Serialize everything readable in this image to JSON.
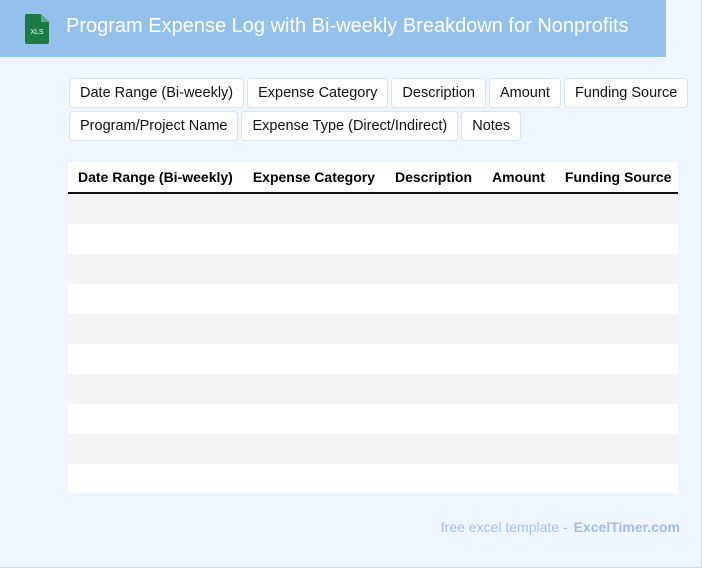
{
  "header": {
    "title": "Program Expense Log with Bi-weekly Breakdown for Nonprofits",
    "icon": "xls-file-icon",
    "icon_label": "XLS",
    "background": "#94c1eb"
  },
  "tags": [
    {
      "label": "Date Range (Bi-weekly)"
    },
    {
      "label": "Expense Category"
    },
    {
      "label": "Description"
    },
    {
      "label": "Amount"
    },
    {
      "label": "Funding Source"
    },
    {
      "label": "Program/Project Name"
    },
    {
      "label": "Expense Type (Direct/Indirect)"
    },
    {
      "label": "Notes"
    }
  ],
  "table": {
    "columns": [
      "Date Range (Bi-weekly)",
      "Expense Category",
      "Description",
      "Amount",
      "Funding Source",
      "Program/Project Name",
      "Expense Type (Direct/Indirect)",
      "Notes"
    ],
    "row_count": 10
  },
  "footer": {
    "text": "free excel template -",
    "brand": "ExcelTimer.com"
  }
}
